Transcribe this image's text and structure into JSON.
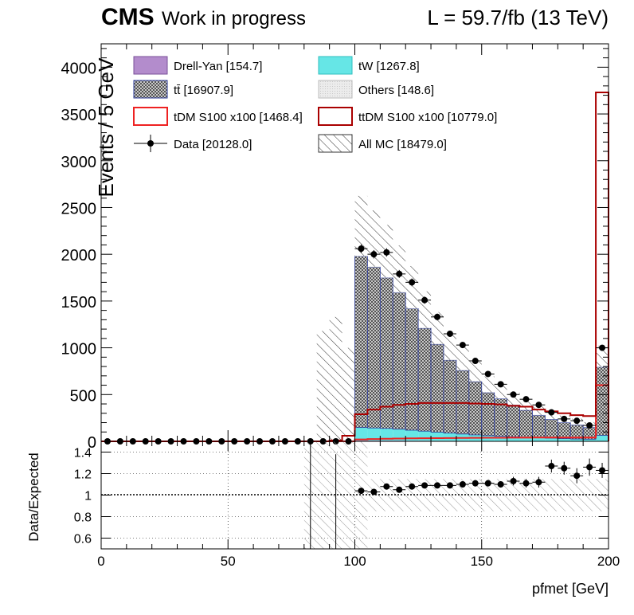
{
  "header": {
    "experiment": "CMS",
    "status": "Work in progress",
    "lumi": "L = 59.7/fb (13 TeV)"
  },
  "colors": {
    "drellyan": "#b38ccc",
    "ttbar": "#999999",
    "tw": "#66e6e6",
    "others": "#dddddd",
    "tdm": "#ee2222",
    "ttdm": "#aa0000",
    "data": "#000000"
  },
  "legend": [
    {
      "label": "Drell-Yan [154.7]",
      "kind": "fill-drellyan"
    },
    {
      "label": "tW [1267.8]",
      "kind": "fill-tw"
    },
    {
      "label": "tt̄ [16907.9]",
      "kind": "fill-ttbar"
    },
    {
      "label": "Others [148.6]",
      "kind": "fill-others"
    },
    {
      "label": "tDM S100 x100 [1468.4]",
      "kind": "line-tdm"
    },
    {
      "label": "ttDM S100 x100 [10779.0]",
      "kind": "line-ttdm"
    },
    {
      "label": "Data [20128.0]",
      "kind": "marker-data"
    },
    {
      "label": "All MC [18479.0]",
      "kind": "hatch-mc"
    }
  ],
  "chart_data": [
    {
      "type": "bar",
      "title": "",
      "ylabel": "Events / 5 GeV",
      "xlabel": "",
      "xlim": [
        0,
        200
      ],
      "ylim": [
        0,
        4250
      ],
      "bin_width": 5,
      "yticks": [
        0,
        500,
        1000,
        1500,
        2000,
        2500,
        3000,
        3500,
        4000
      ],
      "yticklabels": [
        "0",
        "500",
        "1000",
        "1500",
        "2000",
        "2500",
        "3000",
        "3500",
        "4000"
      ],
      "bin_low_edges": [
        0,
        5,
        10,
        15,
        20,
        25,
        30,
        35,
        40,
        45,
        50,
        55,
        60,
        65,
        70,
        75,
        80,
        85,
        90,
        95,
        100,
        105,
        110,
        115,
        120,
        125,
        130,
        135,
        140,
        145,
        150,
        155,
        160,
        165,
        170,
        175,
        180,
        185,
        190,
        195
      ],
      "stack": [
        {
          "name": "Drell-Yan",
          "color": "#b38ccc",
          "values": [
            0,
            0,
            0,
            0,
            0,
            0,
            0,
            0,
            0,
            0,
            0,
            0,
            0,
            0,
            0,
            0,
            0,
            0,
            0,
            0,
            8,
            8,
            8,
            8,
            7,
            7,
            6,
            6,
            6,
            5,
            5,
            5,
            4,
            4,
            4,
            4,
            3,
            3,
            3,
            4
          ]
        },
        {
          "name": "tW",
          "color": "#66e6e6",
          "values": [
            0,
            0,
            0,
            0,
            0,
            0,
            0,
            0,
            0,
            0,
            0,
            0,
            0,
            0,
            0,
            0,
            0,
            0,
            0,
            0,
            140,
            135,
            130,
            122,
            112,
            102,
            92,
            82,
            72,
            64,
            56,
            50,
            44,
            38,
            34,
            30,
            26,
            22,
            20,
            60
          ]
        },
        {
          "name": "tt̄",
          "color": "#999999",
          "values": [
            0,
            0,
            0,
            0,
            0,
            0,
            0,
            0,
            0,
            0,
            0,
            0,
            0,
            0,
            0,
            0,
            0,
            0,
            0,
            0,
            1830,
            1720,
            1610,
            1460,
            1300,
            1100,
            940,
            780,
            680,
            570,
            460,
            400,
            340,
            290,
            240,
            200,
            170,
            150,
            125,
            730
          ]
        },
        {
          "name": "Others",
          "color": "#dddddd",
          "values": [
            0,
            0,
            0,
            0,
            0,
            0,
            0,
            0,
            0,
            0,
            0,
            0,
            0,
            0,
            0,
            0,
            0,
            0,
            0,
            0,
            6,
            6,
            5,
            5,
            5,
            4,
            4,
            4,
            3,
            3,
            3,
            3,
            2,
            2,
            2,
            2,
            2,
            2,
            2,
            6
          ]
        }
      ],
      "mc_unc": [
        0,
        0,
        0,
        0,
        0,
        0,
        0,
        0,
        0,
        0,
        0,
        0,
        0,
        0,
        0,
        0,
        0,
        0,
        0,
        0,
        640,
        600,
        560,
        500,
        450,
        390,
        340,
        290,
        250,
        210,
        170,
        150,
        130,
        110,
        95,
        85,
        75,
        65,
        55,
        220
      ],
      "lines": [
        {
          "name": "tDM S100 x100",
          "color": "#ee2222",
          "values": [
            0,
            0,
            0,
            0,
            0,
            0,
            0,
            0,
            0,
            0,
            0,
            0,
            0,
            0,
            0,
            0,
            0,
            0,
            0,
            0,
            20,
            25,
            28,
            30,
            32,
            33,
            34,
            35,
            36,
            37,
            38,
            38,
            39,
            39,
            40,
            40,
            40,
            40,
            40,
            600
          ]
        },
        {
          "name": "ttDM S100 x100",
          "color": "#aa0000",
          "values": [
            0,
            0,
            0,
            0,
            0,
            0,
            0,
            0,
            0,
            0,
            0,
            0,
            0,
            0,
            0,
            0,
            0,
            0,
            10,
            60,
            290,
            340,
            370,
            390,
            400,
            410,
            410,
            410,
            410,
            405,
            400,
            395,
            380,
            370,
            340,
            320,
            300,
            280,
            270,
            3730
          ]
        }
      ],
      "data": {
        "name": "Data",
        "x": [
          2.5,
          7.5,
          12.5,
          17.5,
          22.5,
          27.5,
          32.5,
          37.5,
          42.5,
          47.5,
          52.5,
          57.5,
          62.5,
          67.5,
          72.5,
          77.5,
          82.5,
          87.5,
          92.5,
          97.5,
          102.5,
          107.5,
          112.5,
          117.5,
          122.5,
          127.5,
          132.5,
          137.5,
          142.5,
          147.5,
          152.5,
          157.5,
          162.5,
          167.5,
          172.5,
          177.5,
          182.5,
          187.5,
          192.5,
          197.5
        ],
        "y": [
          0,
          0,
          0,
          0,
          0,
          0,
          0,
          0,
          0,
          0,
          0,
          0,
          0,
          0,
          0,
          0,
          0,
          0,
          0,
          0,
          2060,
          2000,
          2020,
          1790,
          1700,
          1510,
          1330,
          1150,
          1030,
          860,
          720,
          610,
          500,
          450,
          390,
          310,
          240,
          220,
          170,
          1000
        ]
      }
    },
    {
      "type": "scatter",
      "title": "",
      "ylabel": "Data/Expected",
      "xlabel": "pfmet [GeV]",
      "xlim": [
        0,
        200
      ],
      "ylim": [
        0.5,
        1.5
      ],
      "xticks": [
        0,
        50,
        100,
        150,
        200
      ],
      "xticklabels": [
        "0",
        "50",
        "100",
        "150",
        "200"
      ],
      "yticks": [
        0.6,
        0.8,
        1.0,
        1.2,
        1.4
      ],
      "yticklabels": [
        "0.6",
        "0.8",
        "1",
        "1.2",
        "1.4"
      ],
      "ref_line": 1.0,
      "unc_bands": [
        {
          "x0": 80,
          "x1": 85,
          "lo": 0.5,
          "hi": 1.5
        },
        {
          "x0": 85,
          "x1": 90,
          "lo": 0.5,
          "hi": 1.5
        },
        {
          "x0": 90,
          "x1": 95,
          "lo": 0.5,
          "hi": 1.5
        },
        {
          "x0": 95,
          "x1": 100,
          "lo": 0.5,
          "hi": 1.5
        },
        {
          "x0": 100,
          "x1": 105,
          "lo": 0.5,
          "hi": 1.5
        },
        {
          "x0": 105,
          "x1": 200,
          "lo": 0.85,
          "hi": 1.15
        }
      ],
      "error_lines": [
        {
          "x": 82.5,
          "lo": 0.5,
          "hi": 1.5
        },
        {
          "x": 92.5,
          "lo": 0.5,
          "hi": 1.38
        }
      ],
      "x": [
        102.5,
        107.5,
        112.5,
        117.5,
        122.5,
        127.5,
        132.5,
        137.5,
        142.5,
        147.5,
        152.5,
        157.5,
        162.5,
        167.5,
        172.5,
        177.5,
        182.5,
        187.5,
        192.5,
        197.5
      ],
      "y": [
        1.04,
        1.03,
        1.08,
        1.05,
        1.08,
        1.09,
        1.09,
        1.09,
        1.1,
        1.11,
        1.11,
        1.1,
        1.13,
        1.11,
        1.12,
        1.27,
        1.25,
        1.18,
        1.26,
        1.23
      ],
      "yerr": [
        0.02,
        0.02,
        0.02,
        0.02,
        0.02,
        0.02,
        0.02,
        0.02,
        0.03,
        0.03,
        0.03,
        0.03,
        0.04,
        0.04,
        0.05,
        0.06,
        0.06,
        0.07,
        0.08,
        0.07
      ]
    }
  ]
}
